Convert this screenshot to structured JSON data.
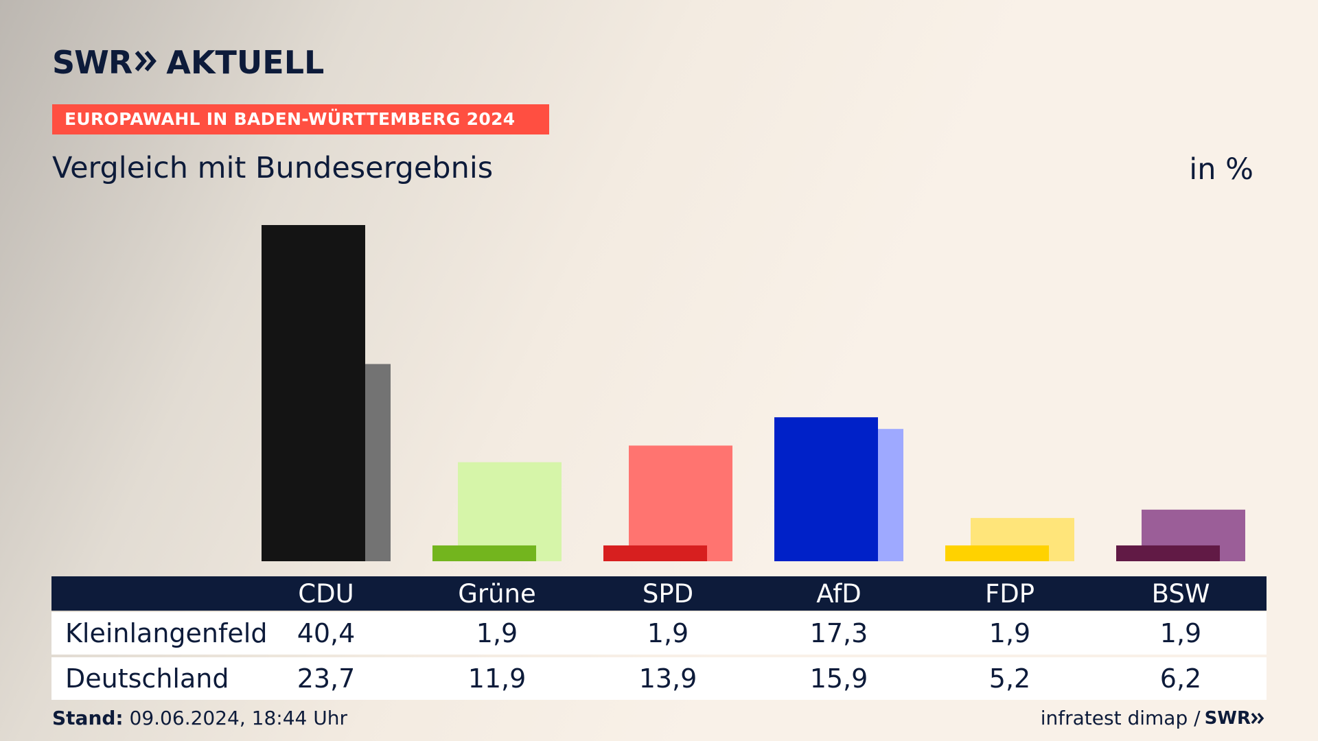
{
  "header": {
    "logo_swr": "SWR",
    "logo_aktuell": "AKTUELL",
    "banner": "EUROPAWAHL IN BADEN-WÜRTTEMBERG 2024",
    "subtitle": "Vergleich mit Bundesergebnis",
    "unit": "in %"
  },
  "footer": {
    "stand_label": "Stand:",
    "stand_value": "09.06.2024, 18:44 Uhr",
    "source": "infratest dimap /",
    "source_logo": "SWR"
  },
  "table": {
    "rows": [
      {
        "label": "Kleinlangenfeld",
        "values": [
          "40,4",
          "1,9",
          "1,9",
          "17,3",
          "1,9",
          "1,9"
        ]
      },
      {
        "label": "Deutschland",
        "values": [
          "23,7",
          "11,9",
          "13,9",
          "15,9",
          "5,2",
          "6,2"
        ]
      }
    ]
  },
  "chart_data": {
    "type": "bar",
    "title": "Vergleich mit Bundesergebnis",
    "subtitle": "EUROPAWAHL IN BADEN-WÜRTTEMBERG 2024",
    "ylabel": "in %",
    "categories": [
      "CDU",
      "Grüne",
      "SPD",
      "AfD",
      "FDP",
      "BSW"
    ],
    "series": [
      {
        "name": "Kleinlangenfeld",
        "values": [
          40.4,
          1.9,
          1.9,
          17.3,
          1.9,
          1.9
        ],
        "colors": [
          "#141414",
          "#73b51e",
          "#d71f1f",
          "#0021c8",
          "#ffd200",
          "#611a45"
        ]
      },
      {
        "name": "Deutschland",
        "values": [
          23.7,
          11.9,
          13.9,
          15.9,
          5.2,
          6.2
        ],
        "colors": [
          "#737373",
          "#d6f5a9",
          "#ff7470",
          "#9ea9ff",
          "#ffe57a",
          "#9b5e98"
        ]
      }
    ],
    "ylim": [
      0,
      40.4
    ],
    "grid": false,
    "legend": "table-below"
  }
}
